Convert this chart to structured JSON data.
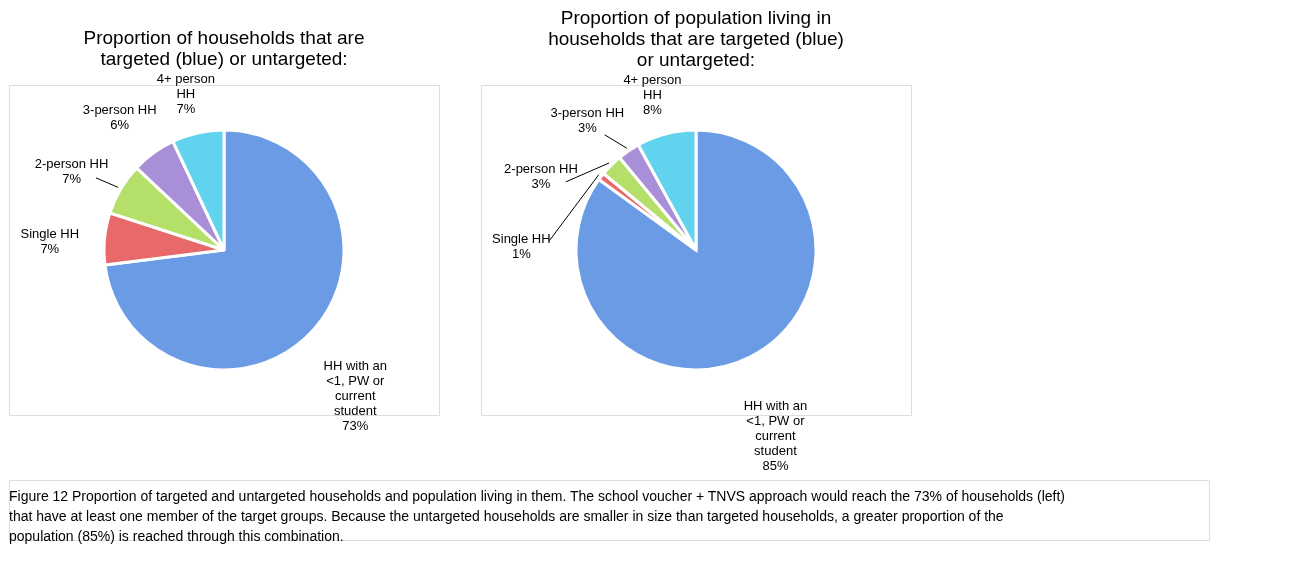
{
  "chart_data": [
    {
      "type": "pie",
      "title": "Proportion of households that are targeted (blue) or untargeted:",
      "categories": [
        "HH with an <1, PW or current student",
        "Single HH",
        "2-person HH",
        "3-person HH",
        "4+ person HH"
      ],
      "values": [
        73,
        7,
        7,
        6,
        7
      ],
      "value_labels": [
        "73%",
        "7%",
        "7%",
        "6%",
        "7%"
      ],
      "colors": [
        "#6c9be6",
        "#e8696a",
        "#b4e06a",
        "#a88fd8",
        "#62d3ef"
      ],
      "annotations": [
        "Figure 12 Proportion of targeted and untargeted households and population living in them. The school voucher + TNVS approach would reach the 73% of households (left) that have at least one member of the target groups. Because the untargeted households are smaller in size than targeted households, a greater proportion of the population (85%) is reached through this combination."
      ]
    },
    {
      "type": "pie",
      "title": "Proportion of population living in households that are targeted (blue) or untargeted:",
      "categories": [
        "HH with an <1, PW or current student",
        "Single HH",
        "2-person HH",
        "3-person HH",
        "4+ person HH"
      ],
      "values": [
        85,
        1,
        3,
        3,
        8
      ],
      "value_labels": [
        "85%",
        "1%",
        "3%",
        "3%",
        "8%"
      ],
      "colors": [
        "#6c9be6",
        "#e8696a",
        "#b4e06a",
        "#a88fd8",
        "#62d3ef"
      ]
    }
  ]
}
